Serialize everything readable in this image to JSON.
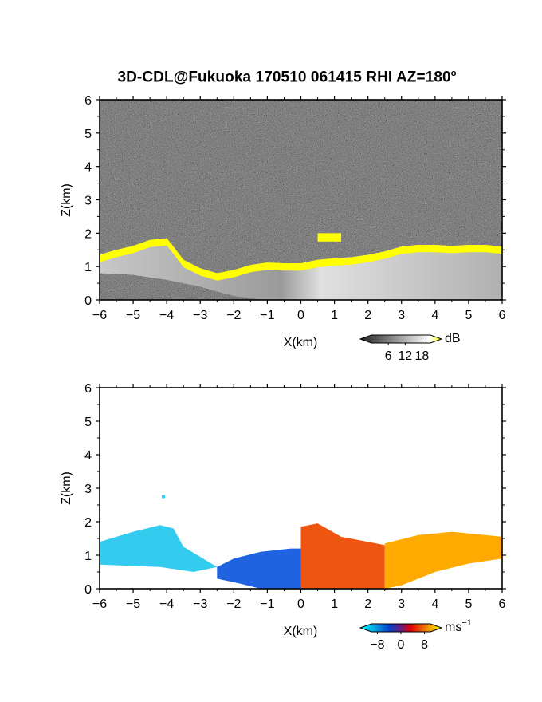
{
  "figure": {
    "title": "3D-CDL@Fukuoka 170510 061415 RHI AZ=180",
    "title_degree": "o"
  },
  "chart_data": [
    {
      "type": "heatmap",
      "name": "intensity",
      "xlabel": "X(km)",
      "ylabel": "Z(km)",
      "xlim": [
        -6,
        6
      ],
      "ylim": [
        0,
        6
      ],
      "xticks": [
        "-6",
        "-5",
        "-4",
        "-3",
        "-2",
        "-1",
        "0",
        "1",
        "2",
        "3",
        "4",
        "5",
        "6"
      ],
      "yticks": [
        "0",
        "1",
        "2",
        "3",
        "4",
        "5",
        "6"
      ],
      "background": "noise",
      "colorbar": {
        "unit": "dB",
        "tick_labels": [
          "6",
          "12",
          "18"
        ],
        "values": [
          6,
          12,
          18
        ],
        "range": [
          0,
          21
        ],
        "colors": [
          "#202020",
          "#ffffff",
          "#ffff00"
        ]
      },
      "echo_region": {
        "top_edge": [
          [
            -6,
            1.35
          ],
          [
            -5.5,
            1.5
          ],
          [
            -5,
            1.62
          ],
          [
            -4.5,
            1.8
          ],
          [
            -4.0,
            1.85
          ],
          [
            -3.8,
            1.6
          ],
          [
            -3.5,
            1.2
          ],
          [
            -3.0,
            0.95
          ],
          [
            -2.5,
            0.8
          ],
          [
            -2.0,
            0.9
          ],
          [
            -1.5,
            1.05
          ],
          [
            -1.0,
            1.12
          ],
          [
            -0.5,
            1.1
          ],
          [
            0,
            1.1
          ],
          [
            0.5,
            1.2
          ],
          [
            1.0,
            1.25
          ],
          [
            1.5,
            1.28
          ],
          [
            2.0,
            1.35
          ],
          [
            2.5,
            1.45
          ],
          [
            3.0,
            1.6
          ],
          [
            3.5,
            1.65
          ],
          [
            4.0,
            1.65
          ],
          [
            4.5,
            1.62
          ],
          [
            5.0,
            1.65
          ],
          [
            5.5,
            1.65
          ],
          [
            6.0,
            1.6
          ]
        ],
        "bottom_edge": [
          [
            -6,
            0.8
          ],
          [
            -5,
            0.75
          ],
          [
            -4,
            0.6
          ],
          [
            -3.5,
            0.5
          ],
          [
            -3,
            0.4
          ],
          [
            -2.5,
            0.25
          ],
          [
            -2,
            0.12
          ],
          [
            -1.5,
            0.05
          ],
          [
            -1,
            0.0
          ],
          [
            6,
            0.0
          ]
        ],
        "high_band_color": "#ffff00",
        "isolated_patches": [
          {
            "x": [
              0.5,
              1.2
            ],
            "z": [
              1.75,
              2.0
            ]
          }
        ]
      }
    },
    {
      "type": "heatmap",
      "name": "velocity",
      "xlabel": "X(km)",
      "ylabel": "Z(km)",
      "xlim": [
        -6,
        6
      ],
      "ylim": [
        0,
        6
      ],
      "xticks": [
        "-6",
        "-5",
        "-4",
        "-3",
        "-2",
        "-1",
        "0",
        "1",
        "2",
        "3",
        "4",
        "5",
        "6"
      ],
      "yticks": [
        "0",
        "1",
        "2",
        "3",
        "4",
        "5",
        "6"
      ],
      "background": "#ffffff",
      "colorbar": {
        "unit": "ms",
        "unit_exponent": "-1",
        "tick_labels": [
          "-8",
          "0",
          "8"
        ],
        "values": [
          -8,
          0,
          8
        ],
        "range": [
          -10,
          10
        ],
        "colors": [
          "#00ffff",
          "#0044cc",
          "#dd0000",
          "#ffff00"
        ]
      },
      "regions": [
        {
          "label": "approaching-far",
          "color": "#33ccee",
          "polygon": [
            [
              -6,
              1.4
            ],
            [
              -5,
              1.7
            ],
            [
              -4.2,
              1.9
            ],
            [
              -3.8,
              1.8
            ],
            [
              -3.5,
              1.25
            ],
            [
              -3.0,
              0.95
            ],
            [
              -2.5,
              0.65
            ],
            [
              -3.2,
              0.5
            ],
            [
              -4.2,
              0.65
            ],
            [
              -6,
              0.72
            ]
          ]
        },
        {
          "label": "approaching-near",
          "color": "#1f63e0",
          "polygon": [
            [
              -2.5,
              0.65
            ],
            [
              -2.0,
              0.9
            ],
            [
              -1.2,
              1.1
            ],
            [
              -0.3,
              1.2
            ],
            [
              0,
              1.2
            ],
            [
              0,
              0
            ],
            [
              -1.2,
              0
            ],
            [
              -1.8,
              0.15
            ],
            [
              -2.5,
              0.3
            ]
          ]
        },
        {
          "label": "receding-near",
          "color": "#ee5510",
          "polygon": [
            [
              0,
              0
            ],
            [
              0,
              1.85
            ],
            [
              0.5,
              1.95
            ],
            [
              1.2,
              1.55
            ],
            [
              2.0,
              1.4
            ],
            [
              2.5,
              1.3
            ],
            [
              2.5,
              0
            ],
            [
              0,
              0
            ]
          ]
        },
        {
          "label": "receding-far",
          "color": "#ffaa00",
          "polygon": [
            [
              2.5,
              0
            ],
            [
              2.5,
              1.35
            ],
            [
              3.5,
              1.6
            ],
            [
              4.5,
              1.7
            ],
            [
              5.5,
              1.6
            ],
            [
              6,
              1.55
            ],
            [
              6,
              0.9
            ],
            [
              5.0,
              0.75
            ],
            [
              4.0,
              0.5
            ],
            [
              3.0,
              0.1
            ]
          ]
        }
      ],
      "isolated_point": {
        "x": -4.1,
        "z": 2.75
      }
    }
  ]
}
